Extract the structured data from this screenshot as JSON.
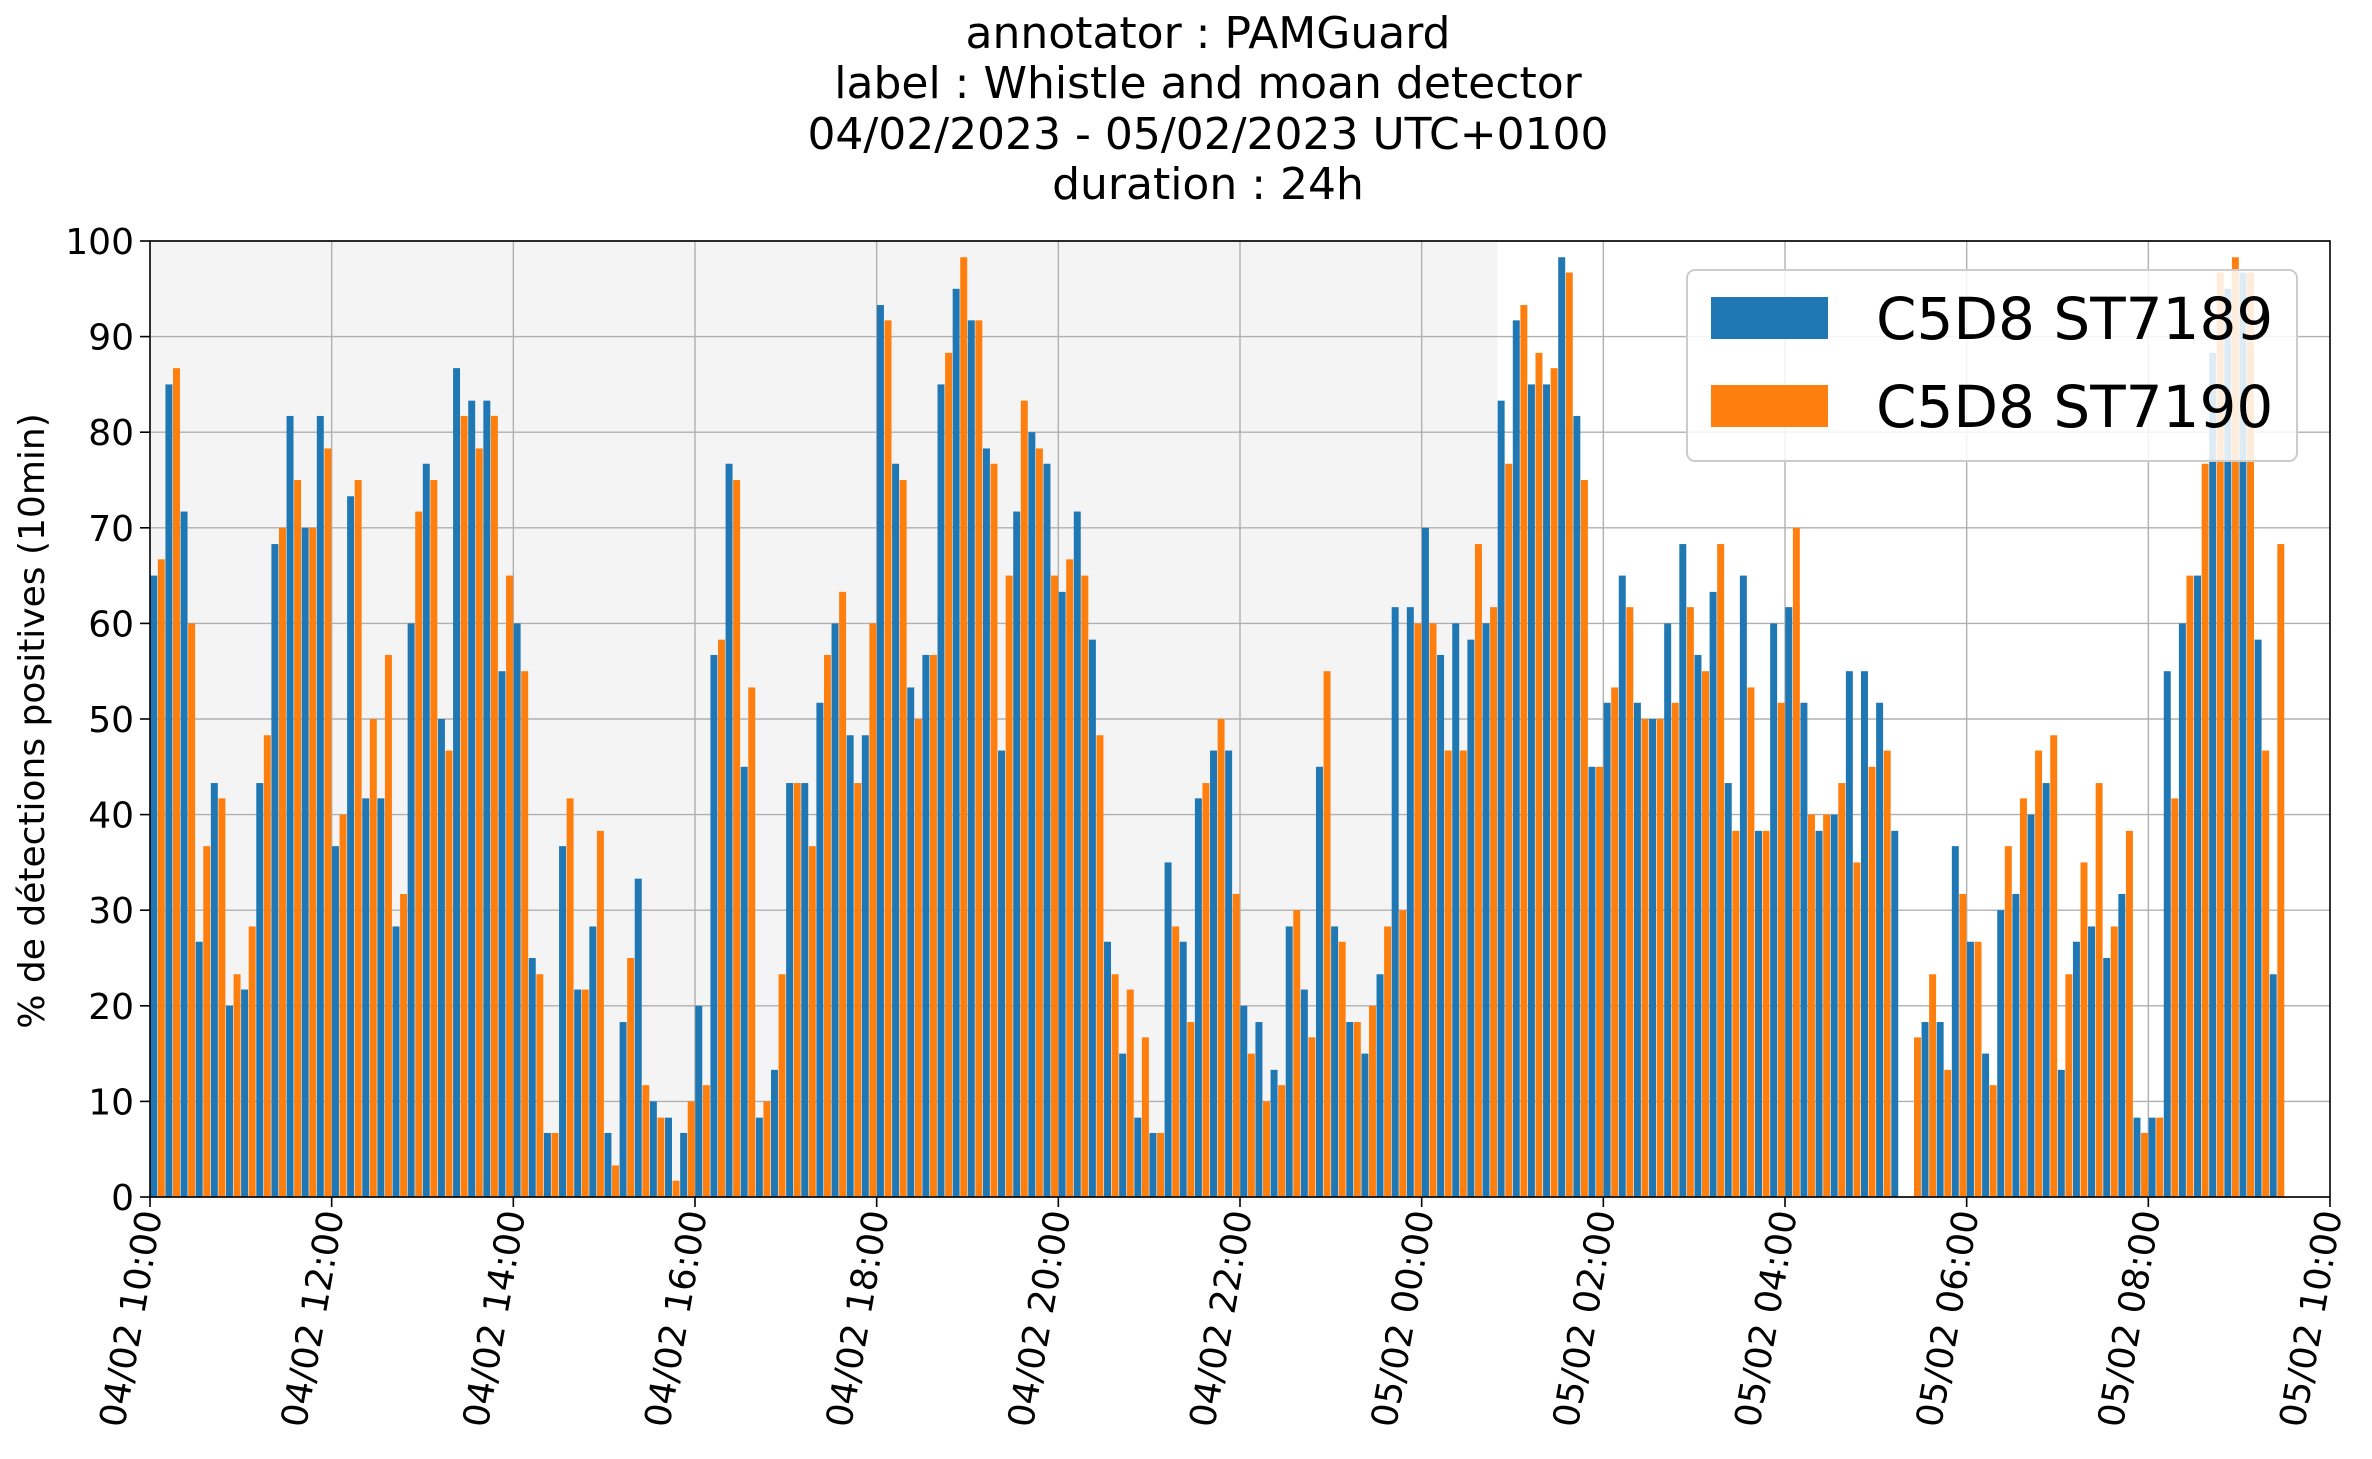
{
  "chart_data": {
    "type": "bar",
    "title_lines": [
      "annotator : PAMGuard",
      "label : Whistle and moan detector",
      "04/02/2023 - 05/02/2023 UTC+0100",
      "duration : 24h"
    ],
    "xlabel": "",
    "ylabel": "% de détections positives (10min)",
    "ylim": [
      0,
      100
    ],
    "yticks": [
      0,
      10,
      20,
      30,
      40,
      50,
      60,
      70,
      80,
      90,
      100
    ],
    "x_tick_labels": [
      "04/02 10:00",
      "04/02 12:00",
      "04/02 14:00",
      "04/02 16:00",
      "04/02 18:00",
      "04/02 20:00",
      "04/02 22:00",
      "05/02 00:00",
      "05/02 02:00",
      "05/02 04:00",
      "05/02 06:00",
      "05/02 08:00",
      "05/02 10:00"
    ],
    "x_start": "04/02 10:00",
    "bin": "10min",
    "grid": true,
    "night_shading": {
      "from": "04/02 10:00",
      "to": "05/02 00:50",
      "color": "#f4f4f4"
    },
    "legend_position": "top-right",
    "series": [
      {
        "name": "C5D8 ST7189",
        "color": "#1f77b4",
        "values": [
          65,
          85,
          71.7,
          26.7,
          43.3,
          20,
          21.7,
          43.3,
          68.3,
          81.7,
          70,
          81.7,
          36.7,
          73.3,
          41.7,
          41.7,
          28.3,
          60,
          76.7,
          50,
          86.7,
          83.3,
          83.3,
          55,
          60,
          25,
          6.7,
          36.7,
          21.7,
          28.3,
          6.7,
          18.3,
          33.3,
          10,
          8.3,
          6.7,
          20,
          56.7,
          76.7,
          45,
          8.3,
          13.3,
          43.3,
          43.3,
          51.7,
          60,
          48.3,
          48.3,
          93.3,
          76.7,
          53.3,
          56.7,
          85,
          95,
          91.7,
          78.3,
          46.7,
          71.7,
          80,
          76.7,
          63.3,
          71.7,
          58.3,
          26.7,
          15,
          8.3,
          6.7,
          35,
          26.7,
          41.7,
          46.7,
          46.7,
          20,
          18.3,
          13.3,
          28.3,
          21.7,
          45,
          28.3,
          18.3,
          15,
          23.3,
          61.7,
          61.7,
          70,
          56.7,
          60,
          58.3,
          60,
          83.3,
          91.7,
          85,
          85,
          98.3,
          81.7,
          45,
          51.7,
          65,
          51.7,
          50,
          60,
          68.3,
          56.7,
          63.3,
          43.3,
          65,
          38.3,
          60,
          61.7,
          51.7,
          38.3,
          40,
          55,
          55,
          51.7,
          38.3,
          0,
          18.3,
          18.3,
          36.7,
          26.7,
          15,
          30,
          31.7,
          40,
          43.3,
          13.3,
          26.7,
          28.3,
          25,
          31.7,
          8.3,
          8.3,
          55,
          60,
          65,
          88.3,
          95,
          96.7,
          58.3,
          23.3
        ]
      },
      {
        "name": "C5D8 ST7190",
        "color": "#ff7f0e",
        "values": [
          66.7,
          86.7,
          60,
          36.7,
          41.7,
          23.3,
          28.3,
          48.3,
          70,
          75,
          70,
          78.3,
          40,
          75,
          50,
          56.7,
          31.7,
          71.7,
          75,
          46.7,
          81.7,
          78.3,
          81.7,
          65,
          55,
          23.3,
          6.7,
          41.7,
          21.7,
          38.3,
          3.3,
          25,
          11.7,
          8.3,
          1.7,
          10,
          11.7,
          58.3,
          75,
          53.3,
          10,
          23.3,
          43.3,
          36.7,
          56.7,
          63.3,
          43.3,
          60,
          91.7,
          75,
          50,
          56.7,
          88.3,
          98.3,
          91.7,
          76.7,
          65,
          83.3,
          78.3,
          65,
          66.7,
          65,
          48.3,
          23.3,
          21.7,
          16.7,
          6.7,
          28.3,
          18.3,
          43.3,
          50,
          31.7,
          15,
          10,
          11.7,
          30,
          16.7,
          55,
          26.7,
          18.3,
          20,
          28.3,
          30,
          60,
          60,
          46.7,
          46.7,
          68.3,
          61.7,
          76.7,
          93.3,
          88.3,
          86.7,
          96.7,
          75,
          45,
          53.3,
          61.7,
          50,
          50,
          51.7,
          61.7,
          55,
          68.3,
          38.3,
          53.3,
          38.3,
          51.7,
          70,
          40,
          40,
          43.3,
          35,
          45,
          46.7,
          0,
          16.7,
          23.3,
          13.3,
          31.7,
          26.7,
          11.7,
          36.7,
          41.7,
          46.7,
          48.3,
          23.3,
          35,
          43.3,
          28.3,
          38.3,
          6.7,
          8.3,
          41.7,
          65,
          76.7,
          96.7,
          98.3,
          96.7,
          46.7,
          68.3
        ]
      }
    ]
  }
}
